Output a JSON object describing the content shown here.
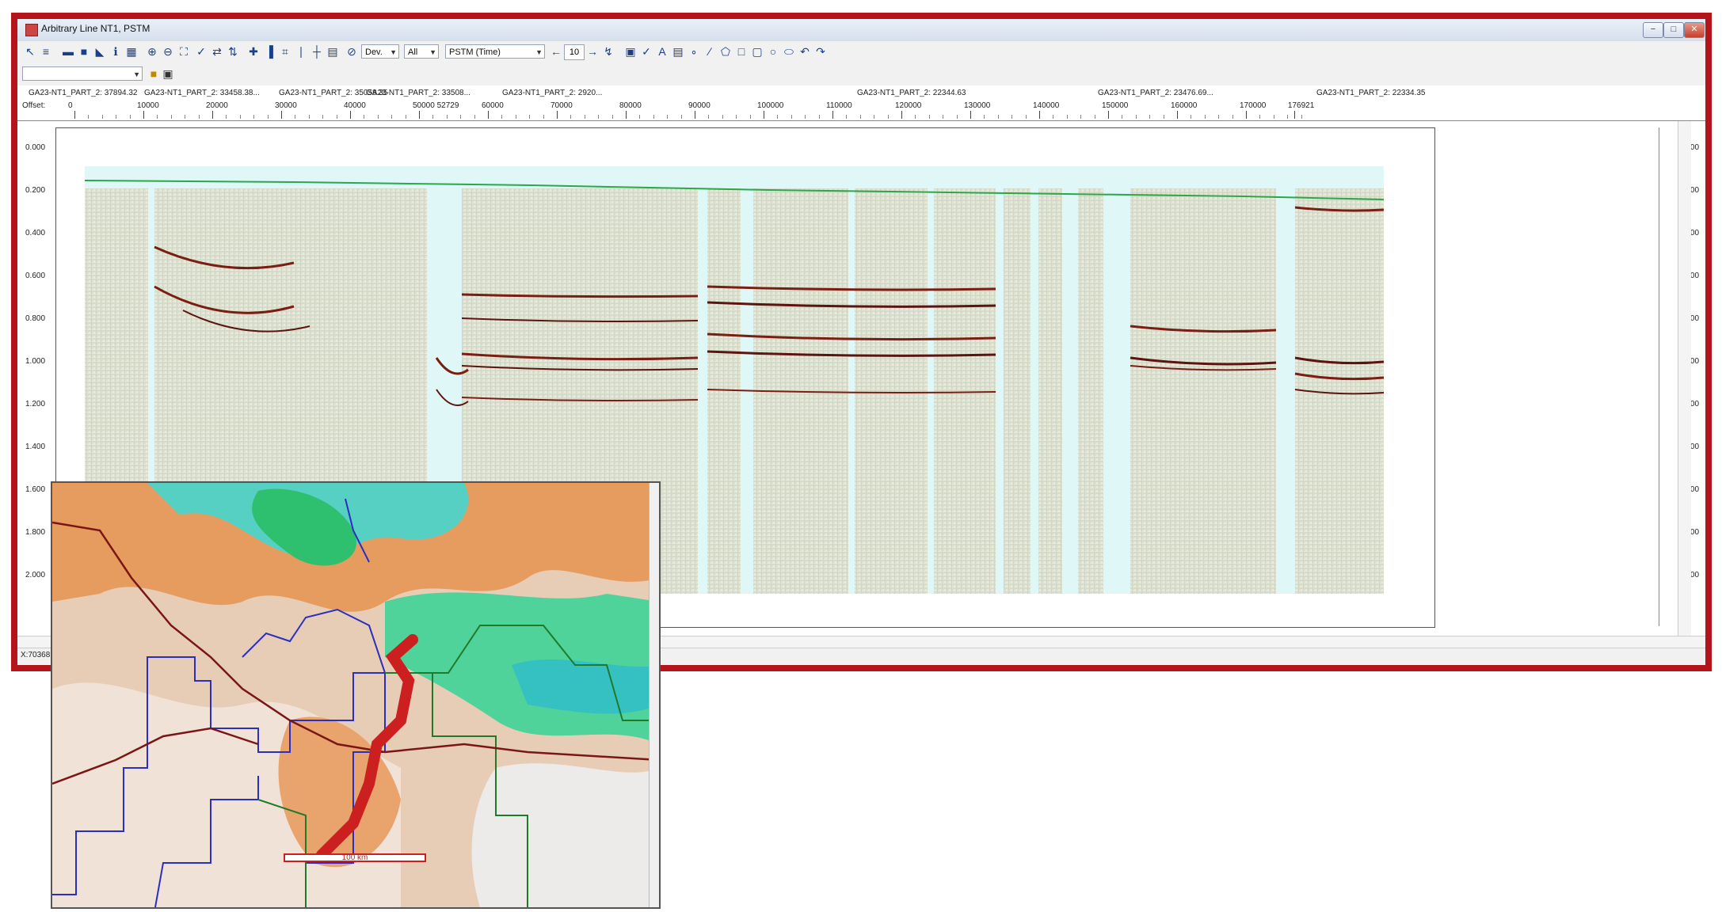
{
  "window": {
    "title": "Arbitrary Line NT1, PSTM",
    "controls": [
      "−",
      "□",
      "✕"
    ]
  },
  "toolbar": {
    "mode_select": "Dev.",
    "filter_select": "All",
    "volume_select": "PSTM (Time)",
    "step_value": "10"
  },
  "header": {
    "line_labels": [
      "GA23-NT1_PART_2: 37894.32",
      "GA23-NT1_PART_2: 35058.35",
      "GA23-NT1_PART_2: 22344.63",
      "GA23-NT1_PART_2: 22334.35"
    ],
    "offset_label": "Offset:",
    "offset_ticks": [
      "0",
      "10000",
      "20000",
      "30000",
      "40000",
      "50000 52729",
      "60000",
      "70000",
      "80000",
      "90000",
      "100000",
      "110000",
      "120000",
      "130000",
      "140000",
      "150000",
      "160000",
      "170000",
      "176921"
    ]
  },
  "time_axis": {
    "labels": [
      "0.000",
      "0.200",
      "0.400",
      "0.600",
      "0.800",
      "1.000",
      "1.200",
      "1.400",
      "1.600",
      "1.800",
      "2.000"
    ]
  },
  "status": {
    "text": "X:70368..."
  },
  "map": {
    "scale_label": "100 km"
  },
  "colors": {
    "frame": "#b4141a",
    "horizon": "#2aa84a",
    "traverse": "#cc1f1f",
    "boundary": "#2a2fc0",
    "road": "#7a1616"
  }
}
